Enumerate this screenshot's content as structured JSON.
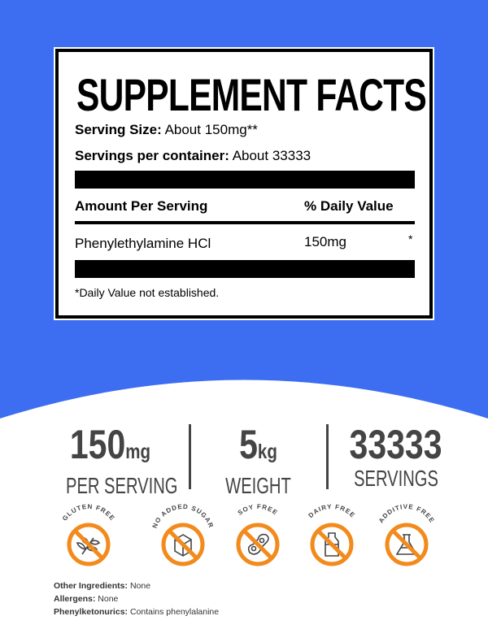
{
  "colors": {
    "background_blue": "#3d6ef2",
    "badge_orange": "#f28a1c",
    "stat_gray": "#444444"
  },
  "label": {
    "title": "SUPPLEMENT FACTS",
    "serving_size_label": "Serving Size:",
    "serving_size_value": "About 150mg**",
    "servings_label": "Servings per container:",
    "servings_value": "About 33333",
    "amount_header": "Amount Per Serving",
    "dv_header": "% Daily Value",
    "ingredient": "Phenylethylamine HCl",
    "ingredient_amount": "150mg",
    "ingredient_dv": "*",
    "footnote": "*Daily Value not established."
  },
  "stats": [
    {
      "number": "150",
      "unit": "mg",
      "caption": "PER SERVING"
    },
    {
      "number": "5",
      "unit": "kg",
      "caption": "WEIGHT"
    },
    {
      "number": "33333",
      "unit": "",
      "caption": "SERVINGS"
    }
  ],
  "badges": [
    {
      "text": "GLUTEN FREE",
      "icon": "wheat-icon"
    },
    {
      "text": "NO ADDED SUGAR",
      "icon": "sugar-cube-icon"
    },
    {
      "text": "SOY FREE",
      "icon": "soybean-icon"
    },
    {
      "text": "DAIRY FREE",
      "icon": "milk-bottle-icon"
    },
    {
      "text": "ADDITIVE FREE",
      "icon": "flask-icon"
    }
  ],
  "info": [
    {
      "label": "Other Ingredients:",
      "value": "None"
    },
    {
      "label": "Allergens:",
      "value": "None"
    },
    {
      "label": "Phenylketonurics:",
      "value": "Contains phenylalanine"
    }
  ]
}
